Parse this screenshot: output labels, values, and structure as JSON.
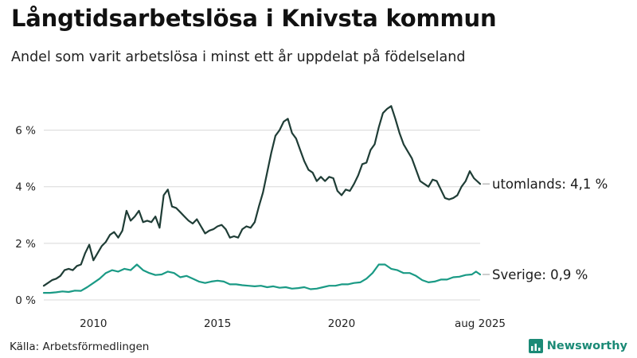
{
  "header": {
    "title": "Långtidsarbetslösa i Knivsta kommun",
    "subtitle": "Andel som varit arbetslösa i minst ett år uppdelat på födelseland"
  },
  "footer": {
    "source": "Källa: Arbetsförmedlingen",
    "brand": "Newsworthy"
  },
  "colors": {
    "utomlands": "#1f3d36",
    "sverige": "#1a9a85",
    "grid": "#d8d8d8",
    "brand": "#1b8a76"
  },
  "chart_data": {
    "type": "line",
    "title": "Långtidsarbetslösa i Knivsta kommun",
    "subtitle": "Andel som varit arbetslösa i minst ett år uppdelat på födelseland",
    "x_range": [
      "2008-01",
      "2025-08"
    ],
    "ylim": [
      0,
      7
    ],
    "y_ticks": [
      0,
      2,
      4,
      6
    ],
    "y_tick_labels": [
      "0 %",
      "2 %",
      "4 %",
      "6 %"
    ],
    "x_ticks": [
      "2010-01",
      "2015-01",
      "2020-01",
      "2025-08"
    ],
    "x_tick_labels": [
      "2010",
      "2015",
      "2020",
      "aug 2025"
    ],
    "grid": "horizontal",
    "series": [
      {
        "key": "utomlands",
        "end_label": "utomlands: 4,1 %",
        "points": [
          [
            "2008-01",
            0.5
          ],
          [
            "2008-03",
            0.6
          ],
          [
            "2008-05",
            0.7
          ],
          [
            "2008-07",
            0.75
          ],
          [
            "2008-09",
            0.85
          ],
          [
            "2008-11",
            1.05
          ],
          [
            "2009-01",
            1.1
          ],
          [
            "2009-03",
            1.05
          ],
          [
            "2009-05",
            1.2
          ],
          [
            "2009-07",
            1.25
          ],
          [
            "2009-09",
            1.65
          ],
          [
            "2009-11",
            1.95
          ],
          [
            "2010-01",
            1.4
          ],
          [
            "2010-03",
            1.65
          ],
          [
            "2010-05",
            1.9
          ],
          [
            "2010-07",
            2.05
          ],
          [
            "2010-09",
            2.3
          ],
          [
            "2010-11",
            2.4
          ],
          [
            "2011-01",
            2.2
          ],
          [
            "2011-03",
            2.45
          ],
          [
            "2011-05",
            3.15
          ],
          [
            "2011-07",
            2.8
          ],
          [
            "2011-09",
            2.95
          ],
          [
            "2011-11",
            3.15
          ],
          [
            "2012-01",
            2.75
          ],
          [
            "2012-03",
            2.8
          ],
          [
            "2012-05",
            2.75
          ],
          [
            "2012-07",
            2.95
          ],
          [
            "2012-09",
            2.55
          ],
          [
            "2012-11",
            3.7
          ],
          [
            "2013-01",
            3.9
          ],
          [
            "2013-03",
            3.3
          ],
          [
            "2013-05",
            3.25
          ],
          [
            "2013-07",
            3.1
          ],
          [
            "2013-09",
            2.95
          ],
          [
            "2013-11",
            2.8
          ],
          [
            "2014-01",
            2.7
          ],
          [
            "2014-03",
            2.85
          ],
          [
            "2014-05",
            2.6
          ],
          [
            "2014-07",
            2.35
          ],
          [
            "2014-09",
            2.45
          ],
          [
            "2014-11",
            2.5
          ],
          [
            "2015-01",
            2.6
          ],
          [
            "2015-03",
            2.65
          ],
          [
            "2015-05",
            2.5
          ],
          [
            "2015-07",
            2.2
          ],
          [
            "2015-09",
            2.25
          ],
          [
            "2015-11",
            2.2
          ],
          [
            "2016-01",
            2.5
          ],
          [
            "2016-03",
            2.6
          ],
          [
            "2016-05",
            2.55
          ],
          [
            "2016-07",
            2.75
          ],
          [
            "2016-09",
            3.3
          ],
          [
            "2016-11",
            3.8
          ],
          [
            "2017-01",
            4.5
          ],
          [
            "2017-03",
            5.2
          ],
          [
            "2017-05",
            5.8
          ],
          [
            "2017-07",
            6.0
          ],
          [
            "2017-09",
            6.3
          ],
          [
            "2017-11",
            6.4
          ],
          [
            "2018-01",
            5.9
          ],
          [
            "2018-03",
            5.7
          ],
          [
            "2018-05",
            5.3
          ],
          [
            "2018-07",
            4.9
          ],
          [
            "2018-09",
            4.6
          ],
          [
            "2018-11",
            4.5
          ],
          [
            "2019-01",
            4.2
          ],
          [
            "2019-03",
            4.35
          ],
          [
            "2019-05",
            4.2
          ],
          [
            "2019-07",
            4.35
          ],
          [
            "2019-09",
            4.3
          ],
          [
            "2019-11",
            3.85
          ],
          [
            "2020-01",
            3.7
          ],
          [
            "2020-03",
            3.9
          ],
          [
            "2020-05",
            3.85
          ],
          [
            "2020-07",
            4.1
          ],
          [
            "2020-09",
            4.4
          ],
          [
            "2020-11",
            4.8
          ],
          [
            "2021-01",
            4.85
          ],
          [
            "2021-03",
            5.3
          ],
          [
            "2021-05",
            5.5
          ],
          [
            "2021-07",
            6.1
          ],
          [
            "2021-09",
            6.6
          ],
          [
            "2021-11",
            6.75
          ],
          [
            "2022-01",
            6.85
          ],
          [
            "2022-03",
            6.4
          ],
          [
            "2022-05",
            5.9
          ],
          [
            "2022-07",
            5.5
          ],
          [
            "2022-09",
            5.25
          ],
          [
            "2022-11",
            5.0
          ],
          [
            "2023-01",
            4.6
          ],
          [
            "2023-03",
            4.2
          ],
          [
            "2023-05",
            4.1
          ],
          [
            "2023-07",
            4.0
          ],
          [
            "2023-09",
            4.25
          ],
          [
            "2023-11",
            4.2
          ],
          [
            "2024-01",
            3.9
          ],
          [
            "2024-03",
            3.6
          ],
          [
            "2024-05",
            3.55
          ],
          [
            "2024-07",
            3.6
          ],
          [
            "2024-09",
            3.7
          ],
          [
            "2024-11",
            4.0
          ],
          [
            "2025-01",
            4.2
          ],
          [
            "2025-03",
            4.55
          ],
          [
            "2025-05",
            4.3
          ],
          [
            "2025-08",
            4.1
          ]
        ]
      },
      {
        "key": "sverige",
        "end_label": "Sverige: 0,9 %",
        "points": [
          [
            "2008-01",
            0.25
          ],
          [
            "2008-04",
            0.25
          ],
          [
            "2008-07",
            0.27
          ],
          [
            "2008-10",
            0.3
          ],
          [
            "2009-01",
            0.28
          ],
          [
            "2009-04",
            0.33
          ],
          [
            "2009-07",
            0.32
          ],
          [
            "2009-10",
            0.45
          ],
          [
            "2010-01",
            0.6
          ],
          [
            "2010-04",
            0.75
          ],
          [
            "2010-07",
            0.95
          ],
          [
            "2010-10",
            1.05
          ],
          [
            "2011-01",
            1.0
          ],
          [
            "2011-04",
            1.1
          ],
          [
            "2011-07",
            1.05
          ],
          [
            "2011-10",
            1.25
          ],
          [
            "2012-01",
            1.05
          ],
          [
            "2012-04",
            0.95
          ],
          [
            "2012-07",
            0.88
          ],
          [
            "2012-10",
            0.9
          ],
          [
            "2013-01",
            1.0
          ],
          [
            "2013-04",
            0.95
          ],
          [
            "2013-07",
            0.8
          ],
          [
            "2013-10",
            0.85
          ],
          [
            "2014-01",
            0.75
          ],
          [
            "2014-04",
            0.65
          ],
          [
            "2014-07",
            0.6
          ],
          [
            "2014-10",
            0.65
          ],
          [
            "2015-01",
            0.68
          ],
          [
            "2015-04",
            0.65
          ],
          [
            "2015-07",
            0.55
          ],
          [
            "2015-10",
            0.55
          ],
          [
            "2016-01",
            0.52
          ],
          [
            "2016-04",
            0.5
          ],
          [
            "2016-07",
            0.48
          ],
          [
            "2016-10",
            0.5
          ],
          [
            "2017-01",
            0.45
          ],
          [
            "2017-04",
            0.48
          ],
          [
            "2017-07",
            0.43
          ],
          [
            "2017-10",
            0.45
          ],
          [
            "2018-01",
            0.4
          ],
          [
            "2018-04",
            0.42
          ],
          [
            "2018-07",
            0.45
          ],
          [
            "2018-10",
            0.38
          ],
          [
            "2019-01",
            0.4
          ],
          [
            "2019-04",
            0.45
          ],
          [
            "2019-07",
            0.5
          ],
          [
            "2019-10",
            0.5
          ],
          [
            "2020-01",
            0.55
          ],
          [
            "2020-04",
            0.55
          ],
          [
            "2020-07",
            0.6
          ],
          [
            "2020-10",
            0.62
          ],
          [
            "2021-01",
            0.75
          ],
          [
            "2021-04",
            0.95
          ],
          [
            "2021-07",
            1.25
          ],
          [
            "2021-10",
            1.25
          ],
          [
            "2022-01",
            1.1
          ],
          [
            "2022-04",
            1.05
          ],
          [
            "2022-07",
            0.95
          ],
          [
            "2022-10",
            0.95
          ],
          [
            "2023-01",
            0.85
          ],
          [
            "2023-04",
            0.7
          ],
          [
            "2023-07",
            0.62
          ],
          [
            "2023-10",
            0.65
          ],
          [
            "2024-01",
            0.72
          ],
          [
            "2024-04",
            0.72
          ],
          [
            "2024-07",
            0.8
          ],
          [
            "2024-10",
            0.82
          ],
          [
            "2025-01",
            0.88
          ],
          [
            "2025-04",
            0.9
          ],
          [
            "2025-06",
            1.0
          ],
          [
            "2025-08",
            0.9
          ]
        ]
      }
    ]
  }
}
